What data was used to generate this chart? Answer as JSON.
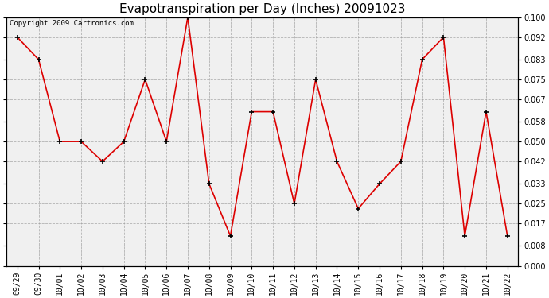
{
  "title": "Evapotranspiration per Day (Inches) 20091023",
  "copyright_text": "Copyright 2009 Cartronics.com",
  "dates": [
    "09/29",
    "09/30",
    "10/01",
    "10/02",
    "10/03",
    "10/04",
    "10/05",
    "10/06",
    "10/07",
    "10/08",
    "10/09",
    "10/10",
    "10/11",
    "10/12",
    "10/13",
    "10/14",
    "10/15",
    "10/16",
    "10/17",
    "10/18",
    "10/19",
    "10/20",
    "10/21",
    "10/22"
  ],
  "values": [
    0.092,
    0.083,
    0.05,
    0.05,
    0.042,
    0.05,
    0.075,
    0.05,
    0.1,
    0.033,
    0.012,
    0.062,
    0.062,
    0.025,
    0.075,
    0.042,
    0.023,
    0.033,
    0.042,
    0.083,
    0.092,
    0.012,
    0.062,
    0.012
  ],
  "line_color": "#dd0000",
  "marker": "+",
  "marker_size": 5,
  "marker_color": "#000000",
  "bg_color": "#ffffff",
  "plot_bg_color": "#f0f0f0",
  "grid_color": "#999999",
  "ylim": [
    0.0,
    0.1
  ],
  "yticks": [
    0.0,
    0.008,
    0.017,
    0.025,
    0.033,
    0.042,
    0.05,
    0.058,
    0.067,
    0.075,
    0.083,
    0.092,
    0.1
  ],
  "title_fontsize": 11,
  "tick_fontsize": 7,
  "copyright_fontsize": 6.5
}
